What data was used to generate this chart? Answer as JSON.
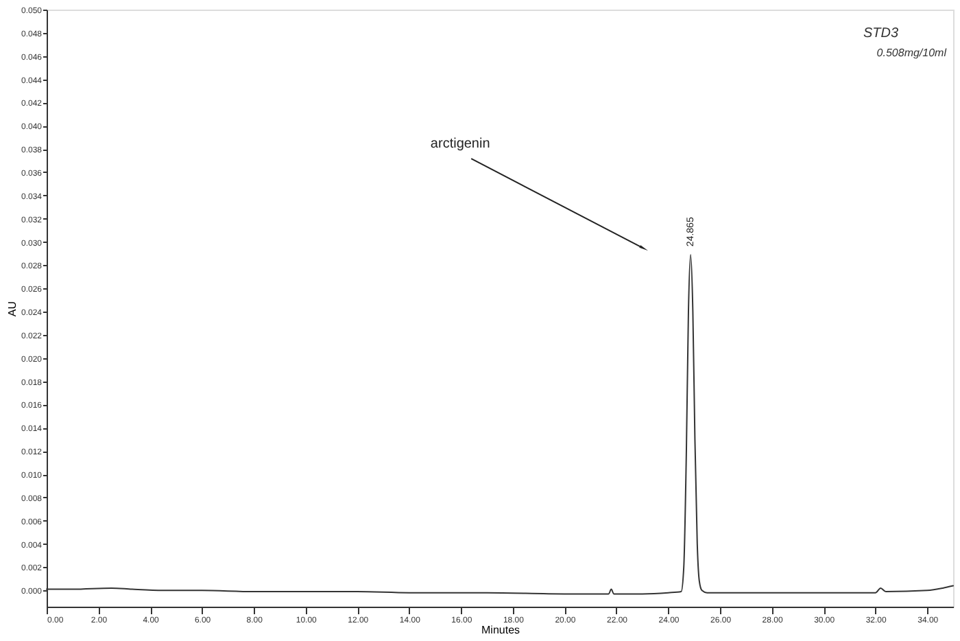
{
  "chart_data": {
    "type": "line",
    "xlabel": "Minutes",
    "ylabel": "AU",
    "x": [
      0,
      1,
      2.5,
      3.3,
      4.5,
      6,
      8,
      10,
      12,
      14,
      17,
      20,
      21.7,
      21.8,
      21.9,
      23,
      24.0,
      24.5,
      24.6,
      24.7,
      24.78,
      24.865,
      24.95,
      25.03,
      25.12,
      25.2,
      25.3,
      25.5,
      27,
      30,
      32.0,
      32.2,
      32.4,
      34,
      34.6,
      35
    ],
    "series": [
      {
        "color": "#333333",
        "values": [
          0.0001,
          0.0001,
          0.0002,
          0.0001,
          0.0,
          0.0,
          -0.0001,
          -0.0001,
          -0.0001,
          -0.0002,
          -0.0002,
          -0.0003,
          -0.0003,
          0.0001,
          -0.0003,
          -0.0003,
          -0.0002,
          -0.0001,
          0.002,
          0.012,
          0.024,
          0.0289,
          0.024,
          0.013,
          0.004,
          0.0008,
          0.0,
          -0.0002,
          -0.0002,
          -0.0002,
          -0.0002,
          0.0002,
          -0.0001,
          0.0,
          0.0002,
          0.0004
        ]
      }
    ],
    "xlim": [
      0,
      35
    ],
    "ylim": [
      -0.0014,
      0.05
    ],
    "xticks": [
      {
        "value": 0,
        "label": "0.00"
      },
      {
        "value": 2,
        "label": "2.00"
      },
      {
        "value": 4,
        "label": "4.00"
      },
      {
        "value": 6,
        "label": "6.00"
      },
      {
        "value": 8,
        "label": "8.00"
      },
      {
        "value": 10,
        "label": "10.00"
      },
      {
        "value": 12,
        "label": "12.00"
      },
      {
        "value": 14,
        "label": "14.00"
      },
      {
        "value": 16,
        "label": "16.00"
      },
      {
        "value": 18,
        "label": "18.00"
      },
      {
        "value": 20,
        "label": "20.00"
      },
      {
        "value": 22,
        "label": "22.00"
      },
      {
        "value": 24,
        "label": "24.00"
      },
      {
        "value": 26,
        "label": "26.00"
      },
      {
        "value": 28,
        "label": "28.00"
      },
      {
        "value": 30,
        "label": "30.00"
      },
      {
        "value": 32,
        "label": "32.00"
      },
      {
        "value": 34,
        "label": "34.00"
      }
    ],
    "yticks": [
      {
        "value": 0,
        "label": "0.000"
      },
      0.002,
      0.004,
      0.006,
      0.008,
      {
        "value": 0.01,
        "label": "0.010"
      },
      0.012,
      0.014,
      0.016,
      0.018,
      {
        "value": 0.02,
        "label": "0.020"
      },
      0.022,
      0.024,
      0.026,
      0.028,
      {
        "value": 0.03,
        "label": "0.030"
      },
      0.032,
      0.034,
      0.036,
      0.038,
      {
        "value": 0.04,
        "label": "0.040"
      },
      0.042,
      0.044,
      0.046,
      0.048,
      {
        "value": 0.05,
        "label": "0.050"
      }
    ],
    "annotations": [
      "arctigenin",
      {
        "text": "24.865",
        "x": 24.865,
        "y": 0.0289
      },
      "STD3",
      "0.508mg/10ml"
    ],
    "grid": false,
    "legend": false,
    "marker": "none",
    "line_style": "solid"
  }
}
